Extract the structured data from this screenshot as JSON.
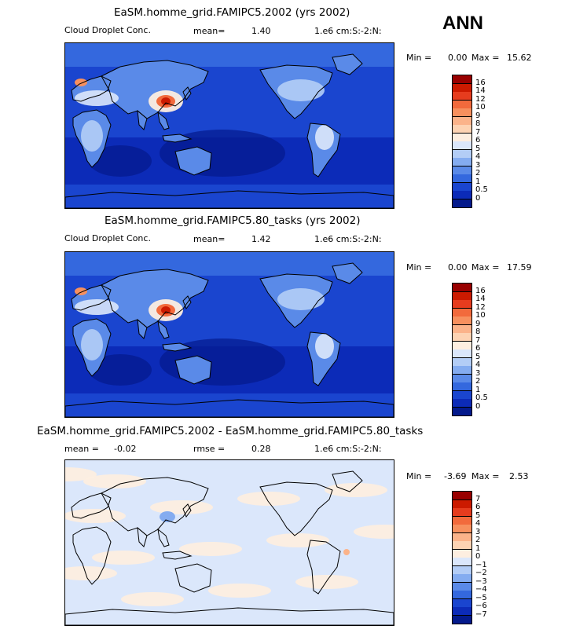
{
  "season": "ANN",
  "panels": [
    {
      "title": "EaSM.homme_grid.FAMIPC5.2002 (yrs 2002)",
      "variable": "Cloud Droplet Conc.",
      "stat_label": "mean=",
      "stat_value": "1.40",
      "stat2_label": "",
      "stat2_value": "",
      "units": "1.e6 cm:S:-2:N:",
      "min_label": "Min =",
      "min_value": "0.00",
      "max_label": "Max =",
      "max_value": "15.62",
      "colorbar_labels": [
        "16",
        "14",
        "12",
        "10",
        "9",
        "8",
        "7",
        "6",
        "5",
        "4",
        "3",
        "2",
        "1",
        "0.5",
        "0"
      ],
      "colorbar_colors": [
        "#990000",
        "#cc1a00",
        "#e63c1e",
        "#f26a3c",
        "#f7905e",
        "#fbb38a",
        "#fdd3b3",
        "#fdeee0",
        "#dbe7fb",
        "#b3cdf6",
        "#84acf0",
        "#5a8ae8",
        "#3468de",
        "#1a45cf",
        "#0c2bb8",
        "#041a8c"
      ],
      "map_style": "abs"
    },
    {
      "title": "EaSM.homme_grid.FAMIPC5.80_tasks (yrs 2002)",
      "variable": "Cloud Droplet Conc.",
      "stat_label": "mean=",
      "stat_value": "1.42",
      "stat2_label": "",
      "stat2_value": "",
      "units": "1.e6 cm:S:-2:N:",
      "min_label": "Min =",
      "min_value": "0.00",
      "max_label": "Max =",
      "max_value": "17.59",
      "colorbar_labels": [
        "16",
        "14",
        "12",
        "10",
        "9",
        "8",
        "7",
        "6",
        "5",
        "4",
        "3",
        "2",
        "1",
        "0.5",
        "0"
      ],
      "colorbar_colors": [
        "#990000",
        "#cc1a00",
        "#e63c1e",
        "#f26a3c",
        "#f7905e",
        "#fbb38a",
        "#fdd3b3",
        "#fdeee0",
        "#dbe7fb",
        "#b3cdf6",
        "#84acf0",
        "#5a8ae8",
        "#3468de",
        "#1a45cf",
        "#0c2bb8",
        "#041a8c"
      ],
      "map_style": "abs"
    },
    {
      "title": "EaSM.homme_grid.FAMIPC5.2002 - EaSM.homme_grid.FAMIPC5.80_tasks",
      "variable": "",
      "stat_label": "mean =",
      "stat_value": "-0.02",
      "stat2_label": "rmse =",
      "stat2_value": "0.28",
      "units": "1.e6 cm:S:-2:N:",
      "min_label": "Min =",
      "min_value": "-3.69",
      "max_label": "Max =",
      "max_value": "2.53",
      "colorbar_labels": [
        "7",
        "6",
        "5",
        "4",
        "3",
        "2",
        "1",
        "0",
        "−1",
        "−2",
        "−3",
        "−4",
        "−5",
        "−6",
        "−7"
      ],
      "colorbar_colors": [
        "#990000",
        "#cc1a00",
        "#e63c1e",
        "#f26a3c",
        "#f7905e",
        "#fbb38a",
        "#fdd3b3",
        "#fdeee0",
        "#dbe7fb",
        "#b3cdf6",
        "#84acf0",
        "#5a8ae8",
        "#3468de",
        "#1a45cf",
        "#0c2bb8",
        "#041a8c"
      ],
      "map_style": "diff"
    }
  ],
  "chart_data": {
    "type": "heatmap",
    "season": "ANN",
    "panels": [
      {
        "title": "EaSM.homme_grid.FAMIPC5.2002 (yrs 2002)",
        "variable": "Cloud Droplet Conc.",
        "units": "1.e6 cm:S:-2:N:",
        "mean": 1.4,
        "min": 0.0,
        "max": 15.62,
        "levels": [
          0,
          0.5,
          1,
          2,
          3,
          4,
          5,
          6,
          7,
          8,
          9,
          10,
          12,
          14,
          16
        ]
      },
      {
        "title": "EaSM.homme_grid.FAMIPC5.80_tasks (yrs 2002)",
        "variable": "Cloud Droplet Conc.",
        "units": "1.e6 cm:S:-2:N:",
        "mean": 1.42,
        "min": 0.0,
        "max": 17.59,
        "levels": [
          0,
          0.5,
          1,
          2,
          3,
          4,
          5,
          6,
          7,
          8,
          9,
          10,
          12,
          14,
          16
        ]
      },
      {
        "title": "EaSM.homme_grid.FAMIPC5.2002 - EaSM.homme_grid.FAMIPC5.80_tasks",
        "units": "1.e6 cm:S:-2:N:",
        "mean": -0.02,
        "rmse": 0.28,
        "min": -3.69,
        "max": 2.53,
        "levels": [
          -7,
          -6,
          -5,
          -4,
          -3,
          -2,
          -1,
          0,
          1,
          2,
          3,
          4,
          5,
          6,
          7
        ]
      }
    ]
  }
}
